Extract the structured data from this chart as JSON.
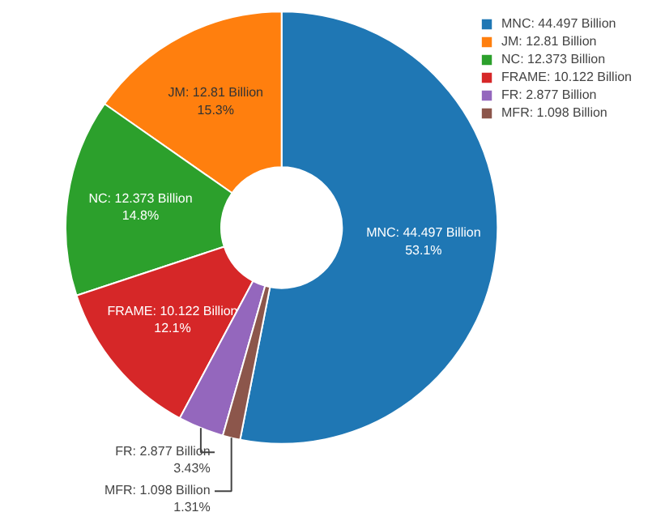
{
  "chart_data": {
    "type": "donut",
    "categories": [
      "MNC: 44.497 Billion",
      "JM: 12.81 Billion",
      "NC: 12.373 Billion",
      "FRAME: 10.122 Billion",
      "FR: 2.877 Billion",
      "MFR: 1.098 Billion"
    ],
    "values": [
      53.1,
      15.3,
      14.8,
      12.1,
      3.43,
      1.31
    ],
    "value_labels": [
      "53.1%",
      "15.3%",
      "14.8%",
      "12.1%",
      "3.43%",
      "1.31%"
    ],
    "colors": [
      "#1f77b4",
      "#ff7f0e",
      "#2ca02c",
      "#d62728",
      "#9467bd",
      "#8c564b"
    ],
    "legend": "top right"
  }
}
